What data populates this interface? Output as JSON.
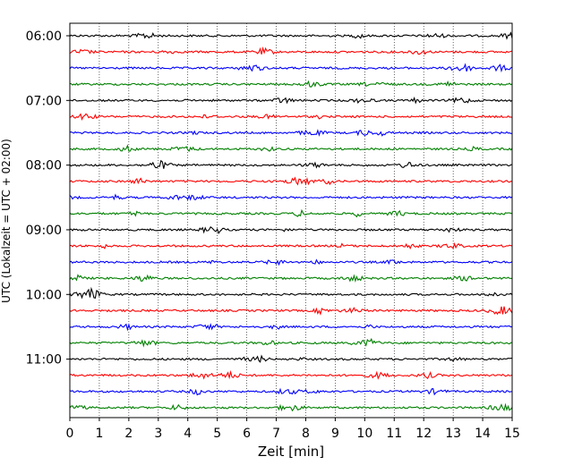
{
  "chart_data": {
    "type": "line",
    "chart_kind": "helicorder",
    "xlabel": "Zeit  [min]",
    "ylabel": "UTC (Lokalzeit = UTC + 02:00)",
    "xlim": [
      0,
      15
    ],
    "x_ticks": [
      "0",
      "1",
      "2",
      "3",
      "4",
      "5",
      "6",
      "7",
      "8",
      "9",
      "10",
      "11",
      "12",
      "13",
      "14",
      "15"
    ],
    "y_ticks": [
      "06:00",
      "07:00",
      "08:00",
      "09:00",
      "10:00",
      "11:00"
    ],
    "grid": "vertical dotted lines at each minute",
    "trace_start_times": [
      "06:00",
      "06:15",
      "06:30",
      "06:45",
      "07:00",
      "07:15",
      "07:30",
      "07:45",
      "08:00",
      "08:15",
      "08:30",
      "08:45",
      "09:00",
      "09:15",
      "09:30",
      "09:45",
      "10:00",
      "10:15",
      "10:30",
      "10:45",
      "11:00",
      "11:15",
      "11:30",
      "11:45"
    ],
    "trace_colors": [
      "#000000",
      "#ff0000",
      "#0000ff",
      "#008000"
    ],
    "minutes_per_line": 15
  }
}
